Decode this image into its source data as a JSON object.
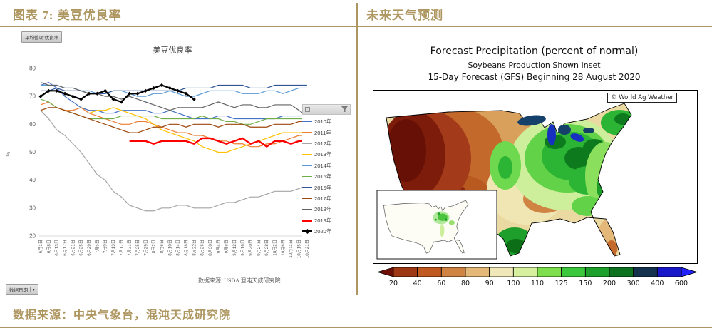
{
  "left_panel": {
    "title": "图表 7: 美豆优良率",
    "pivot_field_button": "平均值项:优良率",
    "axis_field_button": "数据日期",
    "source_note": "数据来源: USDA 混沌天成研究院"
  },
  "right_panel": {
    "title": "未来天气预测",
    "map_title_line1": "Forecast Precipitation (percent of normal)",
    "map_title_line2": "Soybeans Production Shown Inset",
    "map_title_line3": "15-Day Forecast (GFS) Beginning 28 August 2020",
    "map_credit": "© World Ag Weather",
    "colorbar": {
      "ticks": [
        "20",
        "40",
        "60",
        "80",
        "90",
        "100",
        "110",
        "125",
        "150",
        "200",
        "300",
        "400",
        "600"
      ],
      "segment_colors": [
        "#9c3914",
        "#c05a20",
        "#cf8443",
        "#e3b878",
        "#f0e8b8",
        "#d6f0a0",
        "#7ede4e",
        "#3cc83c",
        "#1ea02c",
        "#0c7220",
        "#14324e",
        "#1818c8"
      ],
      "left_arrow_color": "#6e0f05",
      "right_arrow_color": "#2222ff"
    }
  },
  "footer": {
    "source": "数据来源：中央气象台，混沌天成研究院"
  },
  "colors": {
    "accent_gold": "#AE9660"
  },
  "chart_data": {
    "type": "line",
    "title": "美豆优良率",
    "ylabel": "%",
    "ylim": [
      20,
      80
    ],
    "yticks": [
      20,
      30,
      40,
      50,
      60,
      70,
      80
    ],
    "grid": false,
    "legend_position": "right",
    "categories": [
      "6月1日",
      "6月8日",
      "6月13日",
      "6月17日",
      "6月21日",
      "6月25日",
      "6月29日",
      "7月5日",
      "7月9日",
      "7月13日",
      "7月17日",
      "7月21日",
      "7月25日",
      "7月29日",
      "8月2日",
      "8月6日",
      "8月10日",
      "8月14日",
      "8月18日",
      "8月22日",
      "8月26日",
      "8月30日",
      "9月4日",
      "9月8日",
      "9月12日",
      "9月16日",
      "9月20日",
      "9月24日",
      "9月28日",
      "10月2日",
      "10月6日",
      "10月11日",
      "10月15日",
      "10月21日"
    ],
    "series": [
      {
        "name": "2010年",
        "color": "#4472C4",
        "width": 1.2,
        "marker": false,
        "values": [
          74,
          75,
          73,
          70,
          68,
          66,
          65,
          65,
          64,
          64,
          65,
          65,
          65,
          65,
          64,
          64,
          65,
          64,
          63,
          62,
          62,
          62,
          63,
          63,
          62,
          62,
          62,
          62,
          62,
          62,
          63,
          63,
          63,
          63
        ]
      },
      {
        "name": "2011年",
        "color": "#ED7D31",
        "width": 1.2,
        "marker": false,
        "values": [
          67,
          68,
          66,
          65,
          65,
          66,
          64,
          63,
          62,
          61,
          60,
          60,
          61,
          61,
          60,
          59,
          58,
          57,
          57,
          56,
          56,
          55,
          54,
          54,
          53,
          53,
          52,
          52,
          53,
          53,
          54,
          55,
          56,
          56
        ]
      },
      {
        "name": "2012年",
        "color": "#A5A5A5",
        "width": 1.2,
        "marker": false,
        "values": [
          65,
          62,
          58,
          56,
          53,
          50,
          46,
          42,
          40,
          36,
          34,
          31,
          30,
          29,
          29,
          30,
          30,
          31,
          31,
          30,
          30,
          30,
          31,
          32,
          32,
          33,
          34,
          34,
          35,
          36,
          36,
          36,
          37,
          38
        ]
      },
      {
        "name": "2013年",
        "color": "#FFC000",
        "width": 1.2,
        "marker": false,
        "values": [
          null,
          null,
          null,
          null,
          null,
          null,
          64,
          65,
          65,
          66,
          65,
          64,
          63,
          62,
          60,
          58,
          57,
          56,
          55,
          54,
          52,
          51,
          50,
          50,
          51,
          52,
          53,
          54,
          55,
          56,
          57,
          57,
          57,
          57
        ]
      },
      {
        "name": "2014年",
        "color": "#5B9BD5",
        "width": 1.2,
        "marker": false,
        "values": [
          74,
          74,
          74,
          73,
          73,
          72,
          72,
          71,
          71,
          72,
          72,
          71,
          70,
          70,
          71,
          71,
          72,
          71,
          70,
          70,
          71,
          72,
          72,
          72,
          72,
          71,
          71,
          71,
          72,
          72,
          71,
          72,
          73,
          73
        ]
      },
      {
        "name": "2015年",
        "color": "#70AD47",
        "width": 1.2,
        "marker": false,
        "values": [
          69,
          68,
          66,
          65,
          64,
          63,
          62,
          62,
          62,
          62,
          63,
          63,
          63,
          63,
          63,
          62,
          62,
          62,
          62,
          62,
          63,
          62,
          62,
          61,
          61,
          60,
          60,
          61,
          62,
          62,
          62,
          62,
          62,
          62
        ]
      },
      {
        "name": "2016年",
        "color": "#2F5597",
        "width": 1.2,
        "marker": false,
        "values": [
          72,
          72,
          73,
          72,
          72,
          72,
          71,
          71,
          71,
          72,
          72,
          72,
          72,
          72,
          72,
          72,
          72,
          72,
          73,
          73,
          73,
          73,
          74,
          74,
          74,
          74,
          73,
          73,
          73,
          74,
          74,
          74,
          74,
          74
        ]
      },
      {
        "name": "2017年",
        "color": "#9E480E",
        "width": 1.2,
        "marker": false,
        "values": [
          65,
          66,
          66,
          65,
          64,
          63,
          62,
          61,
          60,
          59,
          58,
          57,
          57,
          58,
          59,
          59,
          60,
          60,
          59,
          60,
          60,
          60,
          59,
          60,
          60,
          60,
          59,
          59,
          59,
          60,
          60,
          60,
          61,
          61
        ]
      },
      {
        "name": "2018年",
        "color": "#636363",
        "width": 1.2,
        "marker": false,
        "values": [
          75,
          74,
          74,
          73,
          73,
          72,
          71,
          71,
          70,
          70,
          69,
          70,
          69,
          68,
          67,
          66,
          65,
          66,
          66,
          66,
          66,
          67,
          68,
          67,
          66,
          67,
          67,
          66,
          66,
          67,
          67,
          67,
          65,
          63
        ]
      },
      {
        "name": "2019年",
        "color": "#FF0000",
        "width": 2.4,
        "marker": false,
        "values": [
          null,
          null,
          null,
          null,
          null,
          null,
          null,
          null,
          null,
          null,
          null,
          54,
          54,
          54,
          53,
          54,
          54,
          54,
          54,
          53,
          55,
          55,
          54,
          53,
          54,
          55,
          53,
          54,
          52,
          54,
          54,
          53,
          54,
          54
        ]
      },
      {
        "name": "2020年",
        "color": "#000000",
        "width": 2.2,
        "marker": true,
        "values": [
          70,
          72,
          72,
          71,
          70,
          69,
          71,
          71,
          72,
          69,
          68,
          71,
          71,
          72,
          73,
          74,
          73,
          72,
          71,
          69,
          null,
          null,
          null,
          null,
          null,
          null,
          null,
          null,
          null,
          null,
          null,
          null,
          null,
          null
        ]
      }
    ]
  }
}
